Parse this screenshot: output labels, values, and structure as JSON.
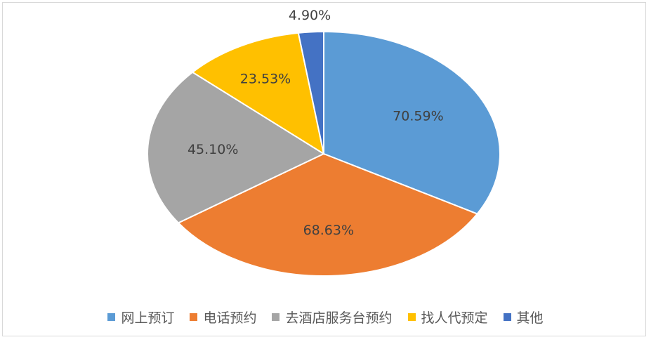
{
  "chart_data": {
    "type": "pie",
    "title": "",
    "slices": [
      {
        "label": "网上预订",
        "value": 70.59,
        "value_label": "70.59%",
        "color": "#5b9bd5"
      },
      {
        "label": "电话预约",
        "value": 68.63,
        "value_label": "68.63%",
        "color": "#ed7d31"
      },
      {
        "label": "去酒店服务台预约",
        "value": 45.1,
        "value_label": "45.10%",
        "color": "#a5a5a5"
      },
      {
        "label": "找人代预定",
        "value": 23.53,
        "value_label": "23.53%",
        "color": "#ffc000"
      },
      {
        "label": "其他",
        "value": 4.9,
        "value_label": "4.90%",
        "color": "#4472c4"
      }
    ],
    "start_angle": "12 o'clock",
    "direction": "clockwise",
    "legend": {
      "position": "bottom"
    }
  }
}
